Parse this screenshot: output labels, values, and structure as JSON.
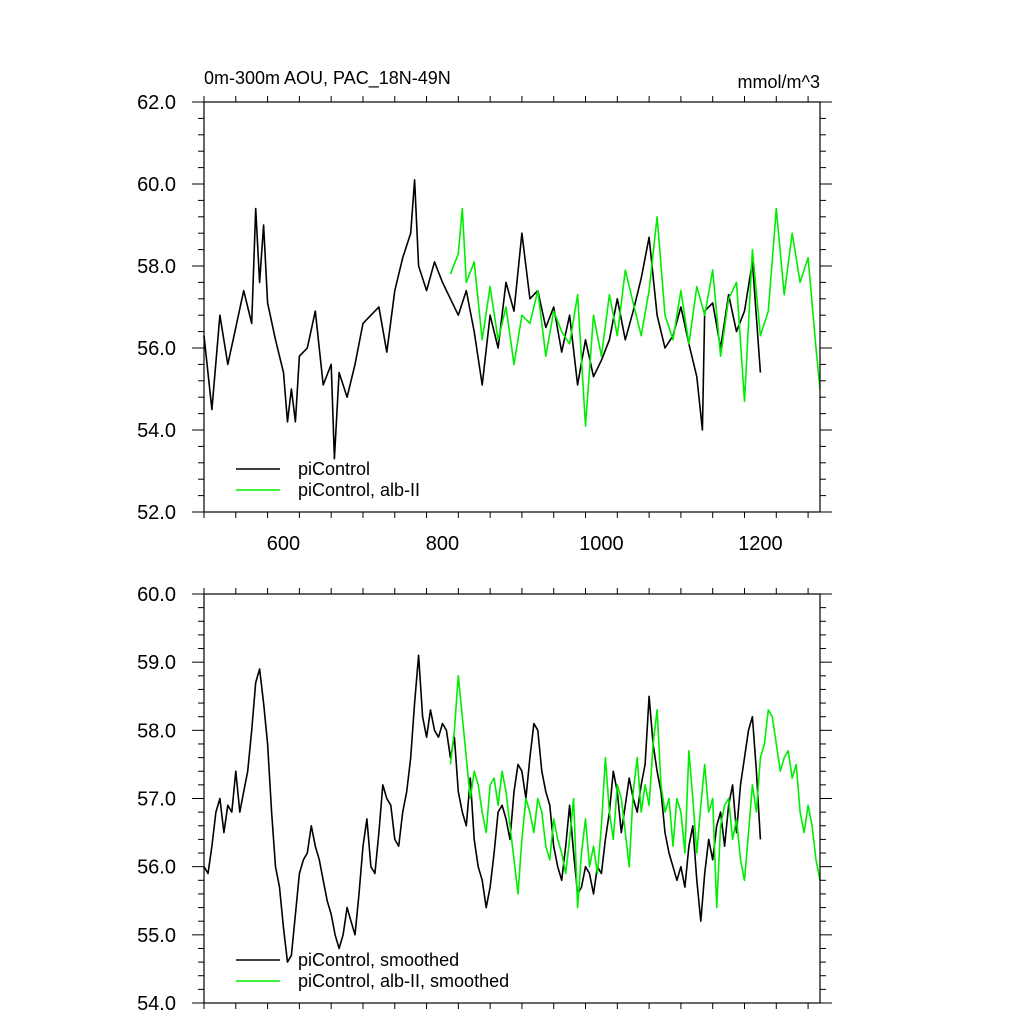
{
  "chart_data": [
    {
      "type": "line",
      "title": "0m-300m AOU, PAC_18N-49N",
      "units": "mmol/m^3",
      "xlim": [
        500,
        1275
      ],
      "ylim": [
        52.0,
        62.0
      ],
      "x_ticks": [
        600,
        800,
        1000,
        1200
      ],
      "x_tick_labels": [
        "600",
        "800",
        "1000",
        "1200"
      ],
      "y_ticks": [
        52,
        54,
        56,
        58,
        60,
        62
      ],
      "y_tick_labels": [
        "52.0",
        "54.0",
        "56.0",
        "58.0",
        "60.0",
        "62.0"
      ],
      "grid": false,
      "legend_position": "bottom-left",
      "series": [
        {
          "name": "piControl",
          "color": "#000000",
          "x": [
            500,
            510,
            520,
            530,
            540,
            550,
            560,
            565,
            570,
            575,
            580,
            590,
            600,
            605,
            610,
            615,
            620,
            630,
            640,
            650,
            660,
            664,
            670,
            680,
            690,
            700,
            710,
            720,
            730,
            740,
            750,
            760,
            765,
            770,
            780,
            790,
            800,
            810,
            820,
            830,
            840,
            850,
            860,
            870,
            880,
            890,
            900,
            910,
            920,
            930,
            940,
            950,
            960,
            970,
            980,
            990,
            1000,
            1010,
            1020,
            1030,
            1040,
            1050,
            1060,
            1070,
            1080,
            1090,
            1100,
            1110,
            1120,
            1127,
            1130,
            1140,
            1150,
            1160,
            1170,
            1180,
            1190,
            1200
          ],
          "y": [
            56.3,
            54.5,
            56.8,
            55.6,
            56.5,
            57.4,
            56.6,
            59.4,
            57.6,
            59.0,
            57.1,
            56.2,
            55.4,
            54.2,
            55.0,
            54.2,
            55.8,
            56.0,
            56.9,
            55.1,
            55.6,
            53.3,
            55.4,
            54.8,
            55.6,
            56.6,
            56.8,
            57.0,
            55.9,
            57.4,
            58.2,
            58.8,
            60.1,
            58.0,
            57.4,
            58.1,
            57.6,
            57.2,
            56.8,
            57.4,
            56.4,
            55.1,
            56.8,
            56.0,
            57.6,
            56.9,
            58.8,
            57.2,
            57.4,
            56.5,
            57.0,
            55.9,
            56.8,
            55.1,
            56.2,
            55.3,
            55.7,
            56.2,
            57.2,
            56.2,
            56.9,
            57.7,
            58.7,
            56.8,
            56.0,
            56.3,
            57.0,
            56.1,
            55.3,
            54.0,
            56.9,
            57.1,
            56.0,
            57.3,
            56.4,
            56.9,
            58.1,
            55.4
          ]
        },
        {
          "name": "piControl, alb-II",
          "color": "#00ee00",
          "x": [
            810,
            820,
            825,
            830,
            840,
            850,
            860,
            870,
            880,
            890,
            900,
            910,
            920,
            930,
            940,
            950,
            960,
            970,
            980,
            990,
            1000,
            1010,
            1020,
            1030,
            1040,
            1050,
            1060,
            1070,
            1080,
            1090,
            1100,
            1110,
            1120,
            1130,
            1140,
            1150,
            1160,
            1170,
            1180,
            1190,
            1200,
            1210,
            1220,
            1230,
            1240,
            1250,
            1260,
            1270,
            1275
          ],
          "y": [
            57.8,
            58.3,
            59.4,
            57.6,
            58.1,
            56.2,
            57.5,
            56.2,
            57.0,
            55.6,
            56.8,
            56.6,
            57.4,
            55.8,
            56.9,
            56.4,
            56.1,
            57.3,
            54.1,
            56.8,
            55.8,
            57.3,
            56.3,
            57.9,
            57.1,
            56.3,
            57.4,
            59.2,
            56.8,
            56.2,
            57.4,
            56.1,
            57.5,
            56.8,
            57.9,
            55.8,
            57.2,
            57.6,
            54.7,
            58.4,
            56.3,
            56.9,
            59.4,
            57.3,
            58.8,
            57.6,
            58.2,
            56.0,
            55.0
          ]
        }
      ]
    },
    {
      "type": "line",
      "xlim": [
        500,
        1275
      ],
      "ylim": [
        54.0,
        60.0
      ],
      "x_ticks": [
        600,
        800,
        1000,
        1200
      ],
      "y_ticks": [
        54,
        55,
        56,
        57,
        58,
        59,
        60
      ],
      "y_tick_labels": [
        "54.0",
        "55.0",
        "56.0",
        "57.0",
        "58.0",
        "59.0",
        "60.0"
      ],
      "grid": false,
      "legend_position": "bottom-left",
      "series": [
        {
          "name": "piControl, smoothed",
          "color": "#000000",
          "x": [
            500,
            505,
            510,
            515,
            520,
            525,
            530,
            535,
            540,
            545,
            550,
            555,
            560,
            565,
            570,
            575,
            580,
            585,
            590,
            595,
            600,
            605,
            610,
            615,
            620,
            625,
            630,
            635,
            640,
            645,
            650,
            655,
            660,
            665,
            670,
            675,
            680,
            685,
            690,
            695,
            700,
            705,
            710,
            715,
            720,
            725,
            730,
            735,
            740,
            745,
            750,
            755,
            760,
            765,
            770,
            775,
            780,
            785,
            790,
            795,
            800,
            805,
            810,
            815,
            820,
            825,
            830,
            835,
            840,
            845,
            850,
            855,
            860,
            865,
            870,
            875,
            880,
            885,
            890,
            895,
            900,
            905,
            910,
            915,
            920,
            925,
            930,
            935,
            940,
            945,
            950,
            955,
            960,
            965,
            970,
            975,
            980,
            985,
            990,
            995,
            1000,
            1005,
            1010,
            1015,
            1020,
            1025,
            1030,
            1035,
            1040,
            1045,
            1050,
            1055,
            1060,
            1065,
            1070,
            1075,
            1080,
            1085,
            1090,
            1095,
            1100,
            1105,
            1110,
            1115,
            1120,
            1125,
            1130,
            1135,
            1140,
            1145,
            1150,
            1155,
            1160,
            1165,
            1170,
            1175,
            1180,
            1185,
            1190,
            1195,
            1200
          ],
          "y": [
            56.0,
            55.9,
            56.3,
            56.8,
            57.0,
            56.5,
            56.9,
            56.8,
            57.4,
            56.8,
            57.1,
            57.4,
            58.0,
            58.7,
            58.9,
            58.4,
            57.8,
            56.8,
            56.0,
            55.7,
            55.1,
            54.6,
            54.7,
            55.3,
            55.9,
            56.1,
            56.2,
            56.6,
            56.3,
            56.1,
            55.8,
            55.5,
            55.3,
            55.0,
            54.8,
            55.0,
            55.4,
            55.2,
            55.0,
            55.6,
            56.3,
            56.7,
            56.0,
            55.9,
            56.5,
            57.2,
            57.0,
            56.9,
            56.4,
            56.3,
            56.8,
            57.1,
            57.6,
            58.4,
            59.1,
            58.2,
            57.9,
            58.3,
            58.0,
            57.9,
            58.1,
            58.0,
            57.6,
            57.9,
            57.1,
            56.8,
            56.6,
            57.3,
            56.4,
            56.0,
            55.8,
            55.4,
            55.7,
            56.2,
            56.8,
            56.9,
            56.7,
            56.4,
            57.1,
            57.5,
            57.4,
            57.0,
            57.6,
            58.1,
            58.0,
            57.4,
            57.1,
            56.9,
            56.3,
            56.0,
            55.8,
            56.3,
            56.9,
            56.2,
            55.6,
            55.7,
            56.0,
            55.9,
            55.6,
            56.0,
            55.9,
            56.4,
            56.8,
            57.4,
            57.1,
            56.5,
            56.9,
            57.3,
            57.0,
            56.8,
            57.2,
            57.5,
            58.5,
            57.8,
            57.4,
            57.1,
            56.5,
            56.2,
            56.0,
            55.8,
            56.0,
            55.7,
            56.3,
            56.6,
            55.8,
            55.2,
            55.9,
            56.4,
            56.1,
            56.6,
            56.8,
            56.3,
            56.9,
            57.2,
            56.5,
            57.2,
            57.6,
            58.0,
            58.2,
            57.4,
            56.4
          ]
        },
        {
          "name": "piControl, alb-II, smoothed",
          "color": "#00ee00",
          "x": [
            810,
            815,
            820,
            825,
            830,
            835,
            840,
            845,
            850,
            855,
            860,
            865,
            870,
            875,
            880,
            885,
            890,
            895,
            900,
            905,
            910,
            915,
            920,
            925,
            930,
            935,
            940,
            945,
            950,
            955,
            960,
            965,
            970,
            975,
            980,
            985,
            990,
            995,
            1000,
            1005,
            1010,
            1015,
            1020,
            1025,
            1030,
            1035,
            1040,
            1045,
            1050,
            1055,
            1060,
            1065,
            1070,
            1075,
            1080,
            1085,
            1090,
            1095,
            1100,
            1105,
            1110,
            1115,
            1120,
            1125,
            1130,
            1135,
            1140,
            1145,
            1150,
            1155,
            1160,
            1165,
            1170,
            1175,
            1180,
            1185,
            1190,
            1195,
            1200,
            1205,
            1210,
            1215,
            1220,
            1225,
            1230,
            1235,
            1240,
            1245,
            1250,
            1255,
            1260,
            1265,
            1270,
            1275
          ],
          "y": [
            57.5,
            58.0,
            58.8,
            58.2,
            57.6,
            57.0,
            57.4,
            57.2,
            56.8,
            56.5,
            57.2,
            57.3,
            56.9,
            57.4,
            57.1,
            56.6,
            56.1,
            55.6,
            56.4,
            57.0,
            56.8,
            56.5,
            57.0,
            56.8,
            56.3,
            56.1,
            56.7,
            56.4,
            56.2,
            55.9,
            56.4,
            57.0,
            55.4,
            56.2,
            56.7,
            56.0,
            56.3,
            55.9,
            56.6,
            57.6,
            56.8,
            56.4,
            57.2,
            57.0,
            56.5,
            56.0,
            57.1,
            57.6,
            56.8,
            57.2,
            56.9,
            57.8,
            58.3,
            57.2,
            56.8,
            57.0,
            56.3,
            57.0,
            56.8,
            56.2,
            57.7,
            57.0,
            56.2,
            56.9,
            57.5,
            56.8,
            57.0,
            55.4,
            56.6,
            56.9,
            57.0,
            56.4,
            56.7,
            56.1,
            55.8,
            56.5,
            57.2,
            56.8,
            57.6,
            57.8,
            58.3,
            58.2,
            57.8,
            57.4,
            57.6,
            57.7,
            57.3,
            57.5,
            56.8,
            56.5,
            56.9,
            56.6,
            56.1,
            55.8
          ]
        }
      ]
    }
  ]
}
